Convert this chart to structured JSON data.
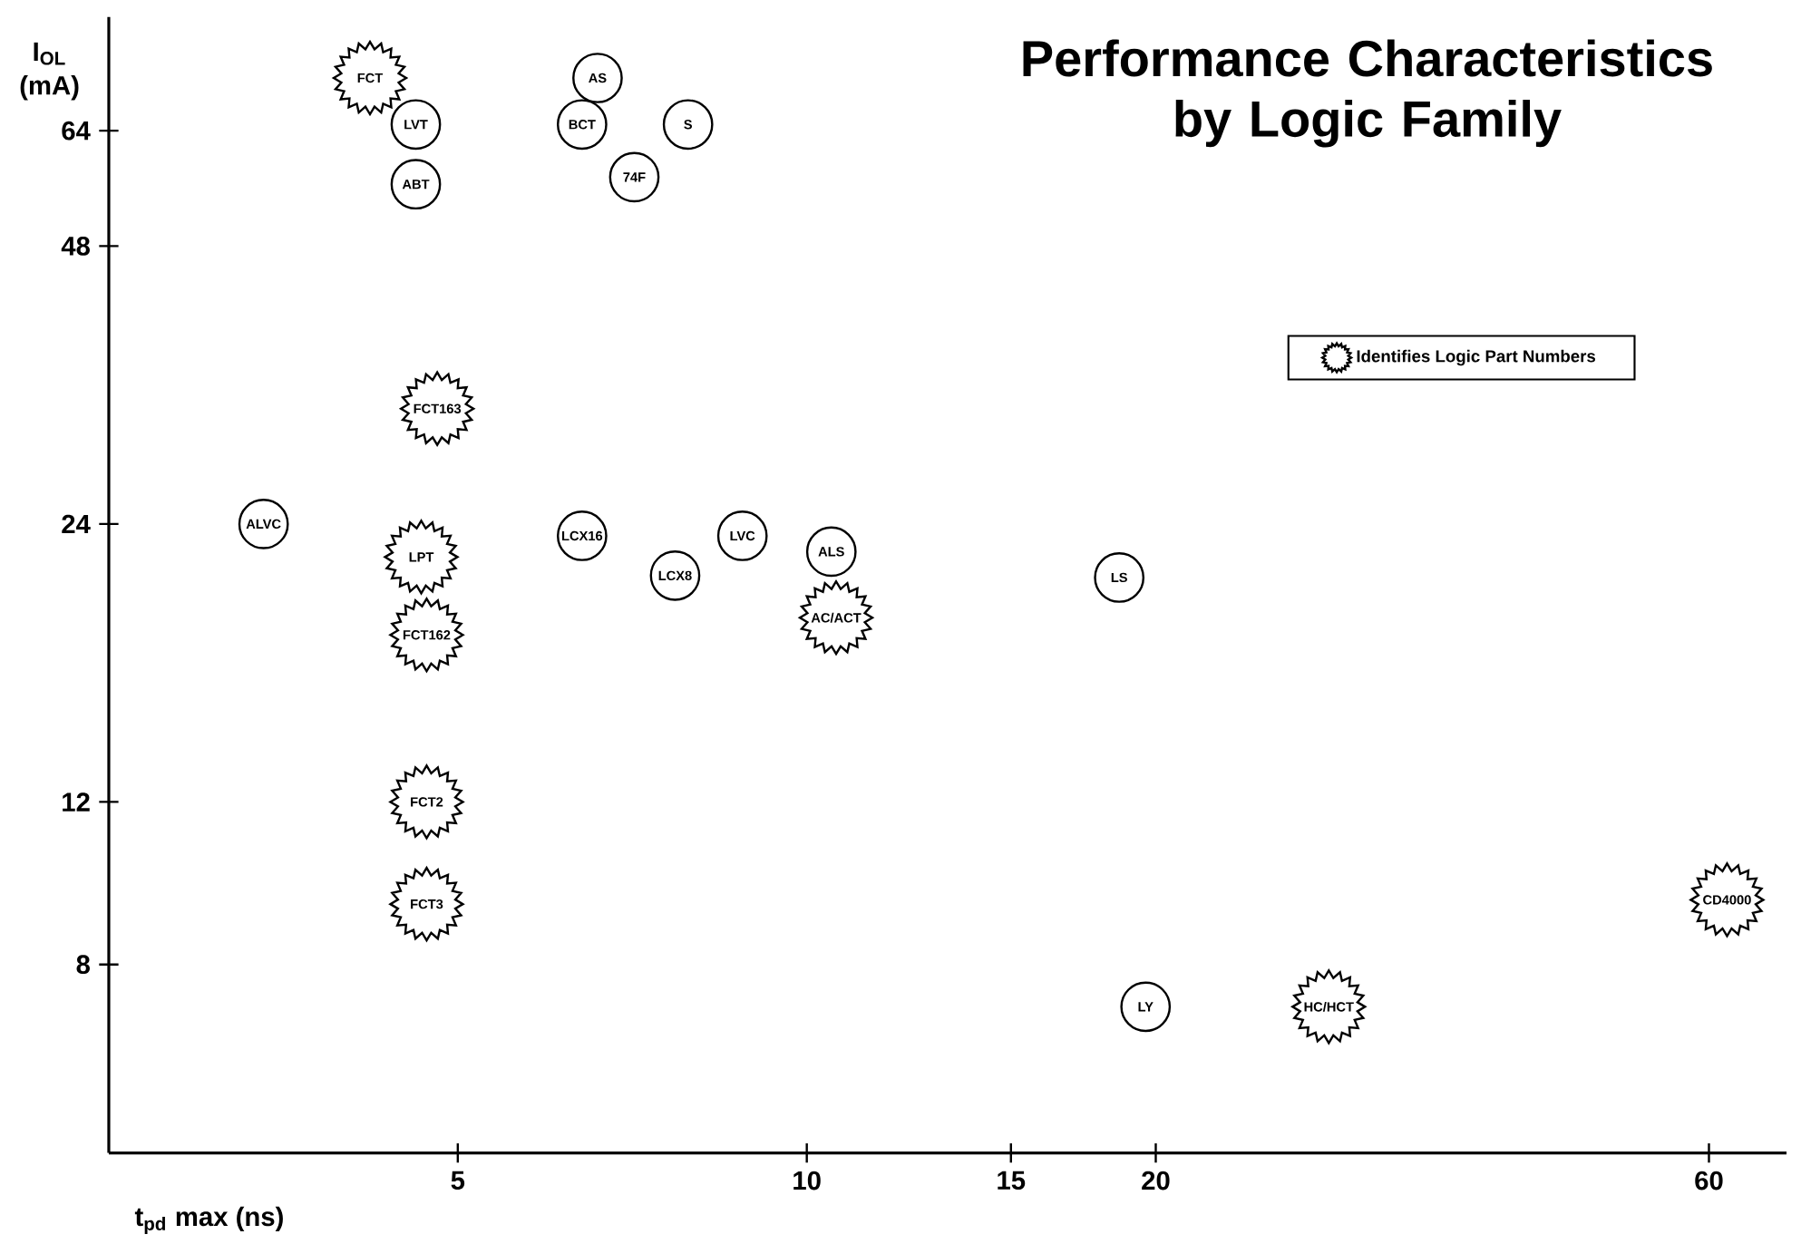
{
  "chart_data": {
    "type": "scatter",
    "title": "Performance Characteristics by Logic Family",
    "xlabel": "t$_{pd}$ max (ns)",
    "ylabel": "I$_{OL}$ (mA)",
    "log": "xy",
    "xlim": [
      2.5,
      70
    ],
    "ylim": [
      5,
      85
    ],
    "xticks": [
      5,
      10,
      15,
      20,
      60
    ],
    "yticks": [
      8,
      12,
      24,
      48,
      64
    ],
    "grid": false,
    "legend": "top right",
    "series": [
      {
        "marker": "circle",
        "color": "#000000",
        "x": [
          4.6,
          4.6,
          6.6,
          6.4,
          7.9,
          7.1,
          3.4,
          6.4,
          8.8,
          7.7,
          10.5,
          18.6,
          19.6
        ],
        "values": [
          65,
          56,
          73,
          65,
          65,
          57,
          24,
          23.3,
          23.3,
          21.1,
          22.4,
          21,
          7.2
        ]
      },
      {
        "name": "Identifies Logic Part Numbers",
        "marker": "star",
        "color": "#000000",
        "x": [
          4.2,
          4.8,
          4.65,
          4.7,
          4.7,
          4.7,
          10.6,
          28.2,
          62.2
        ],
        "values": [
          73,
          32,
          22.1,
          18.2,
          12,
          9.3,
          19,
          7.2,
          9.4
        ]
      }
    ],
    "annotations": [
      {
        "text": "LVT",
        "x": 4.6,
        "y": 65
      },
      {
        "text": "ABT",
        "x": 4.6,
        "y": 56
      },
      {
        "text": "AS",
        "x": 6.6,
        "y": 73
      },
      {
        "text": "BCT",
        "x": 6.4,
        "y": 65
      },
      {
        "text": "S",
        "x": 7.9,
        "y": 65
      },
      {
        "text": "74F",
        "x": 7.1,
        "y": 57
      },
      {
        "text": "ALVC",
        "x": 3.4,
        "y": 24
      },
      {
        "text": "LCX16",
        "x": 6.4,
        "y": 23.3
      },
      {
        "text": "LVC",
        "x": 8.8,
        "y": 23.3
      },
      {
        "text": "LCX8",
        "x": 7.7,
        "y": 21.1
      },
      {
        "text": "ALS",
        "x": 10.5,
        "y": 22.4
      },
      {
        "text": "LS",
        "x": 18.6,
        "y": 21
      },
      {
        "text": "LY",
        "x": 19.6,
        "y": 7.2
      },
      {
        "text": "FCT",
        "x": 4.2,
        "y": 73
      },
      {
        "text": "FCT163",
        "x": 4.8,
        "y": 32
      },
      {
        "text": "LPT",
        "x": 4.65,
        "y": 22.1
      },
      {
        "text": "FCT162",
        "x": 4.7,
        "y": 18.2
      },
      {
        "text": "FCT2",
        "x": 4.7,
        "y": 12
      },
      {
        "text": "FCT3",
        "x": 4.7,
        "y": 9.3
      },
      {
        "text": "AC/ACT",
        "x": 10.6,
        "y": 19
      },
      {
        "text": "HC/HCT",
        "x": 28.2,
        "y": 7.2
      },
      {
        "text": "CD4000",
        "x": 62.2,
        "y": 9.4
      }
    ]
  }
}
